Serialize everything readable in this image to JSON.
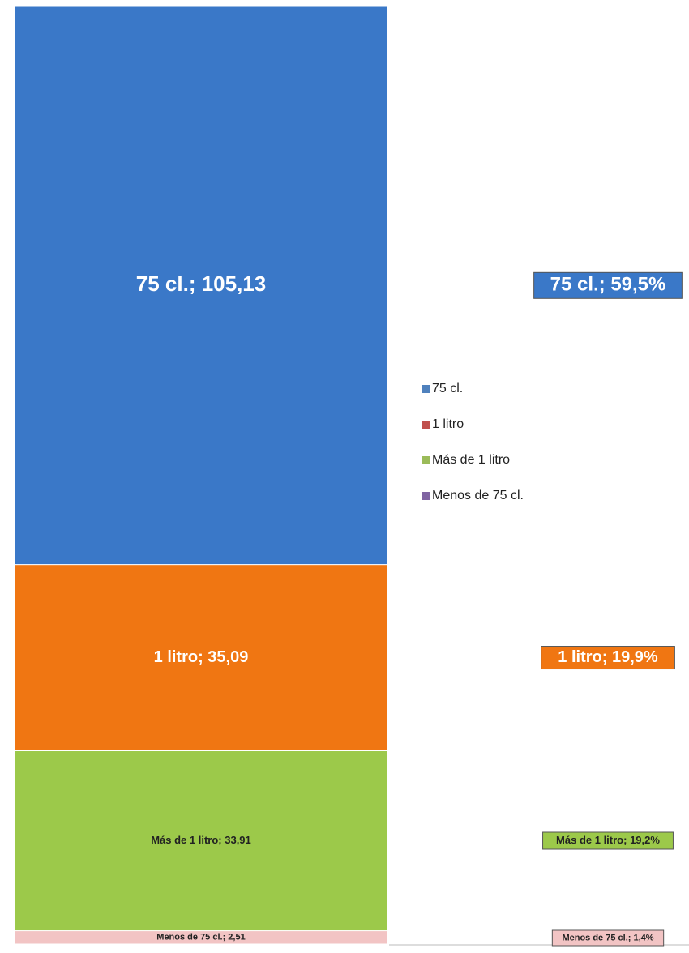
{
  "chart_data": {
    "type": "stacked_bar",
    "ylim": [
      0,
      176.64
    ],
    "series": [
      {
        "name": "75 cl.",
        "color": "#3a78c8",
        "legend_color": "#4f81bd",
        "values": [
          105.13
        ],
        "value_labels": [
          "75 cl.; 105,13"
        ],
        "percent_values": [
          59.5
        ],
        "percent_labels": [
          "75 cl.; 59,5%"
        ]
      },
      {
        "name": "1 litro",
        "color": "#f07612",
        "legend_color": "#c0504d",
        "values": [
          35.09
        ],
        "value_labels": [
          "1 litro; 35,09"
        ],
        "percent_values": [
          19.9
        ],
        "percent_labels": [
          "1 litro; 19,9%"
        ]
      },
      {
        "name": "Más de 1 litro",
        "color": "#9cc94a",
        "legend_color": "#9bbb59",
        "values": [
          33.91
        ],
        "value_labels": [
          "Más de 1 litro; 33,91"
        ],
        "percent_values": [
          19.2
        ],
        "percent_labels": [
          "Más de 1 litro; 19,2%"
        ]
      },
      {
        "name": "Menos de 75 cl.",
        "color": "#f2c4c4",
        "legend_color": "#8064a2",
        "values": [
          2.51
        ],
        "value_labels": [
          "Menos de 75 cl.; 2,51"
        ],
        "percent_values": [
          1.4
        ],
        "percent_labels": [
          "Menos de 75 cl.; 1,4%"
        ]
      }
    ],
    "legend": "right"
  }
}
